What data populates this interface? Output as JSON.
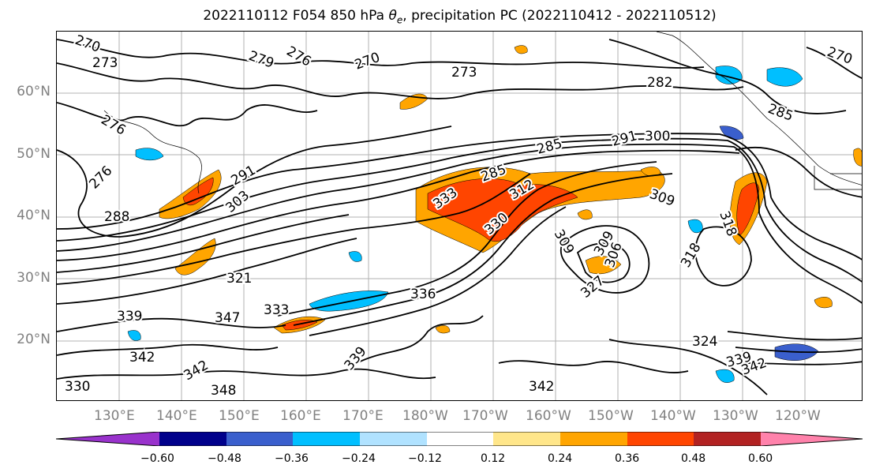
{
  "title": "2022110112 F054 850 hPa θe, precipitation PC (2022110412 - 2022110512)",
  "title_parts": {
    "prefix": "2022110112 F054 850 hPa ",
    "theta": "θ",
    "sub": "e",
    "suffix": ", precipitation PC (2022110412 - 2022110512)"
  },
  "lat_labels": [
    "60°N",
    "50°N",
    "40°N",
    "30°N",
    "20°N"
  ],
  "lon_labels": [
    "130°E",
    "140°E",
    "150°E",
    "160°E",
    "170°E",
    "180°W",
    "170°W",
    "160°W",
    "150°W",
    "140°W",
    "130°W",
    "120°W"
  ],
  "contour_labels": [
    "270",
    "273",
    "279",
    "276",
    "270",
    "273",
    "282",
    "285",
    "270",
    "285",
    "276",
    "276",
    "288",
    "291",
    "303",
    "285",
    "291",
    "300",
    "333",
    "312",
    "330",
    "309",
    "318",
    "309",
    "309",
    "306",
    "318",
    "321",
    "327",
    "336",
    "333",
    "339",
    "347",
    "342",
    "342",
    "339",
    "348",
    "342",
    "324",
    "342",
    "339",
    "330"
  ],
  "colorbar": {
    "ticks": [
      "−0.60",
      "−0.48",
      "−0.36",
      "−0.24",
      "−0.12",
      "0.12",
      "0.24",
      "0.36",
      "0.48",
      "0.60"
    ],
    "colors": [
      "#9932cc",
      "#00008b",
      "#3a5fcd",
      "#00bfff",
      "#b0e2ff",
      "#ffffff",
      "#ffe68a",
      "#ffa500",
      "#ff4500",
      "#b22222",
      "#ff82ab"
    ]
  }
}
